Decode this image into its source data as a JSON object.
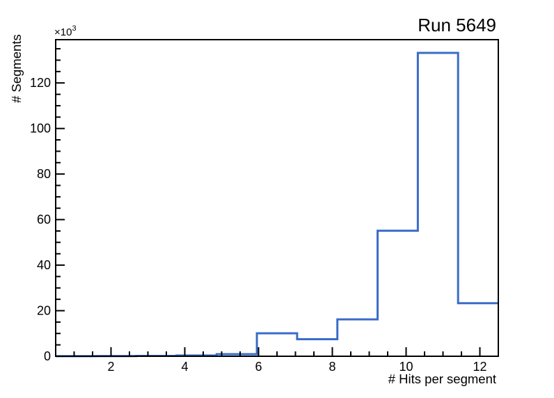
{
  "window": {
    "background_color": "#ffffff"
  },
  "colors": {
    "histogram_line": "#3a6cc8",
    "axis_line": "#000000",
    "text": "#000000"
  },
  "chart_data": {
    "type": "histogram-step",
    "title": "Run 5649",
    "xlabel": "# Hits per segment",
    "ylabel": "# Segments",
    "y_multiplier_base": "×10",
    "y_multiplier_exp": "3",
    "xlim": [
      0.5,
      12.5
    ],
    "ylim": [
      0,
      139000
    ],
    "grid": false,
    "legend": null,
    "x_tick_values": [
      2,
      4,
      6,
      8,
      10,
      12
    ],
    "x_tick_labels": [
      "2",
      "4",
      "6",
      "8",
      "10",
      "12"
    ],
    "x_minor_step": 0.5,
    "y_tick_values": [
      0,
      20000,
      40000,
      60000,
      80000,
      100000,
      120000
    ],
    "y_tick_labels": [
      "0",
      "20",
      "40",
      "60",
      "80",
      "100",
      "120"
    ],
    "y_minor_step": 5000,
    "bin_edges": [
      0.5,
      1.5909,
      2.6818,
      3.7727,
      4.8636,
      5.9545,
      7.0455,
      8.1364,
      9.2273,
      10.3182,
      11.4091,
      12.5
    ],
    "bin_counts": [
      50,
      80,
      150,
      350,
      900,
      10100,
      7500,
      16200,
      55100,
      133200,
      23300
    ]
  }
}
